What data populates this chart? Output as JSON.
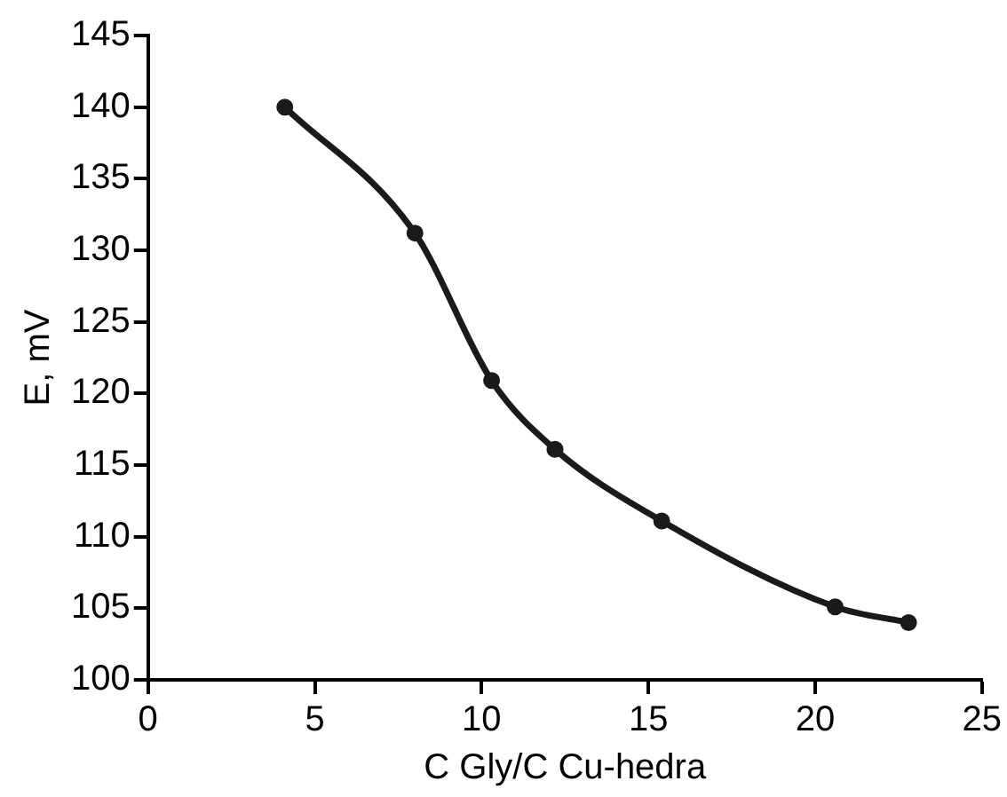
{
  "chart_data": {
    "type": "line",
    "xlabel": "C Gly/C Cu-hedra",
    "ylabel": "E, mV",
    "series": [
      {
        "color": "#1a1a1a",
        "x": [
          4.1,
          8.0,
          10.3,
          12.2,
          15.4,
          20.6,
          22.8
        ],
        "values": [
          140,
          131.2,
          120.9,
          116.1,
          111.1,
          105.1,
          104
        ]
      }
    ],
    "xlim": [
      0,
      25
    ],
    "xticks": [
      0,
      5,
      10,
      15,
      20,
      25
    ],
    "ylim": [
      100,
      145
    ],
    "yticks": [
      100,
      105,
      110,
      115,
      120,
      125,
      130,
      135,
      140,
      145
    ],
    "grid": false,
    "legend": false,
    "marker": "circle",
    "line_style": "solid"
  }
}
